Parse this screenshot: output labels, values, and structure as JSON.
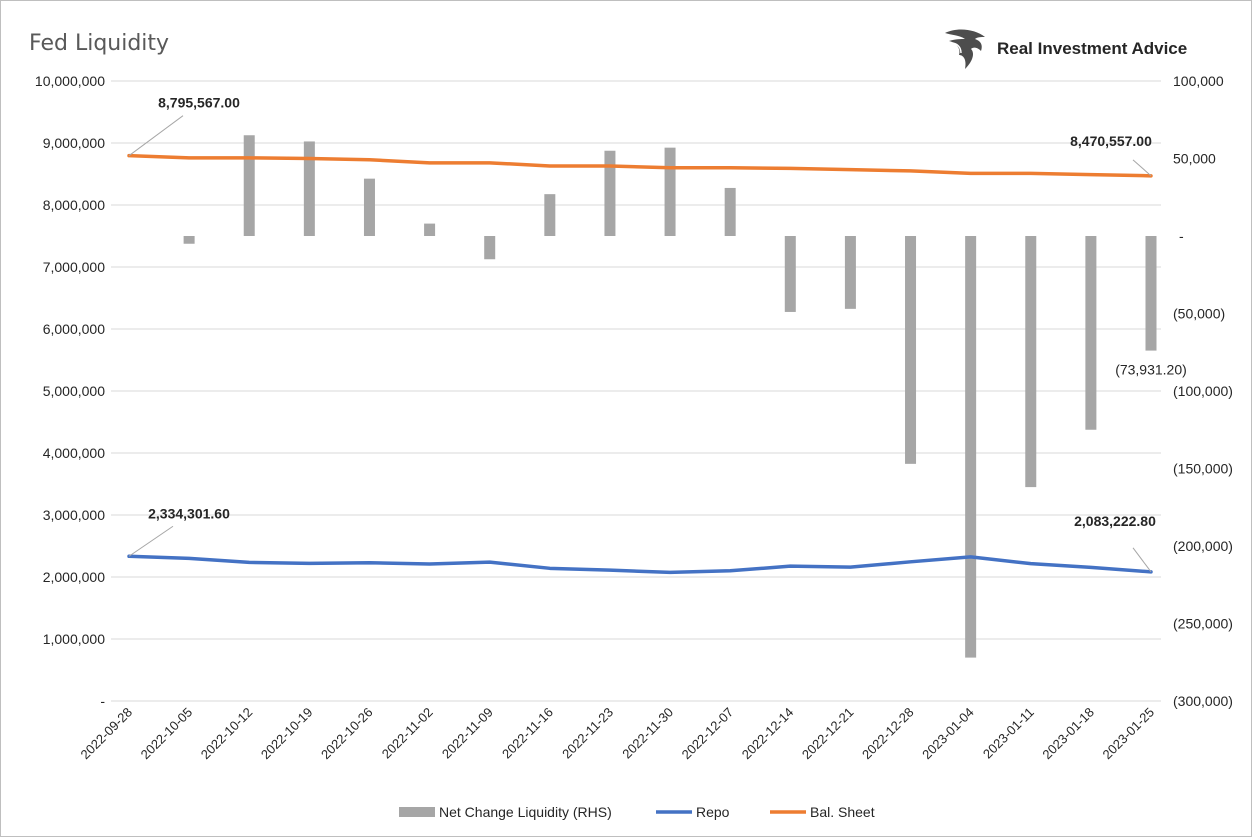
{
  "brand": {
    "name": "Real Investment Advice",
    "logo_icon": "eagle-head-icon"
  },
  "chart_data": {
    "type": "bar+line",
    "title": "Fed Liquidity",
    "categories": [
      "2022-09-28",
      "2022-10-05",
      "2022-10-12",
      "2022-10-19",
      "2022-10-26",
      "2022-11-02",
      "2022-11-09",
      "2022-11-16",
      "2022-11-23",
      "2022-11-30",
      "2022-12-07",
      "2022-12-14",
      "2022-12-21",
      "2022-12-28",
      "2023-01-04",
      "2023-01-11",
      "2023-01-18",
      "2023-01-25"
    ],
    "left_axis": {
      "ylim": [
        0,
        10000000
      ],
      "ticks": [
        "-",
        "1,000,000",
        "2,000,000",
        "3,000,000",
        "4,000,000",
        "5,000,000",
        "6,000,000",
        "7,000,000",
        "8,000,000",
        "9,000,000",
        "10,000,000"
      ]
    },
    "right_axis": {
      "ylim": [
        -300000,
        100000
      ],
      "ticks": [
        "(300,000)",
        "(250,000)",
        "(200,000)",
        "(150,000)",
        "(100,000)",
        "(50,000)",
        "-",
        "50,000",
        "100,000"
      ]
    },
    "series": [
      {
        "name": "Net Change Liquidity (RHS)",
        "type": "bar",
        "axis": "right",
        "color": "#a6a6a6",
        "values": [
          null,
          -5000,
          65000,
          61000,
          37000,
          8000,
          -15000,
          27000,
          55000,
          57000,
          31000,
          -49000,
          -47000,
          -147000,
          -272000,
          -162000,
          -125000,
          -73931.2
        ]
      },
      {
        "name": "Repo",
        "type": "line",
        "axis": "left",
        "color": "#4472c4",
        "values": [
          2334301.6,
          2300000,
          2235000,
          2220000,
          2230000,
          2210000,
          2240000,
          2140000,
          2110000,
          2075000,
          2100000,
          2175000,
          2160000,
          2245000,
          2325000,
          2215000,
          2155000,
          2083222.8
        ]
      },
      {
        "name": "Bal. Sheet",
        "type": "line",
        "axis": "left",
        "color": "#ed7d31",
        "values": [
          8795567,
          8760000,
          8760000,
          8750000,
          8730000,
          8680000,
          8680000,
          8630000,
          8630000,
          8600000,
          8600000,
          8590000,
          8570000,
          8550000,
          8510000,
          8510000,
          8490000,
          8470557
        ]
      }
    ],
    "annotations": [
      {
        "text": "8,795,567.00",
        "series": "Bal. Sheet",
        "index": 0
      },
      {
        "text": "8,470,557.00",
        "series": "Bal. Sheet",
        "index": 17
      },
      {
        "text": "2,334,301.60",
        "series": "Repo",
        "index": 0
      },
      {
        "text": "2,083,222.80",
        "series": "Repo",
        "index": 17
      },
      {
        "text": "(73,931.20)",
        "series": "Net Change Liquidity (RHS)",
        "index": 17
      }
    ],
    "grid": true,
    "legend": "bottom-center"
  }
}
